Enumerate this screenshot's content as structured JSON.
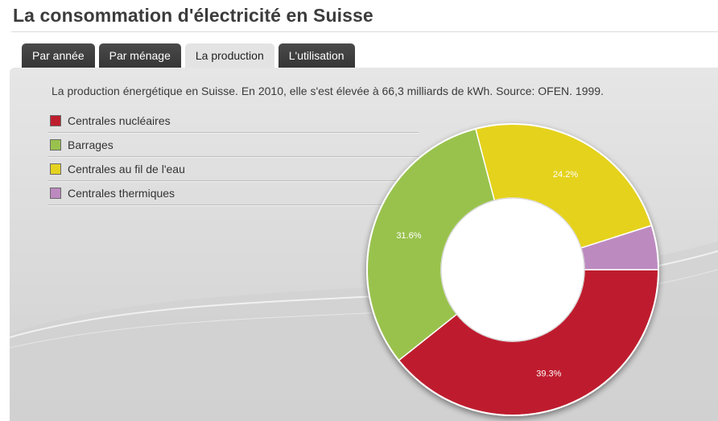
{
  "header": {
    "title": "La consommation d'électricité en Suisse"
  },
  "tabs": [
    {
      "label": "Par année",
      "active": false
    },
    {
      "label": "Par ménage",
      "active": false
    },
    {
      "label": "La production",
      "active": true
    },
    {
      "label": "L'utilisation",
      "active": false
    }
  ],
  "panel": {
    "intro": "La production énergétique en Suisse. En 2010, elle s'est élevée à 66,3 milliards de kWh. Source: OFEN. 1999."
  },
  "chart_data": {
    "type": "pie",
    "variant": "donut",
    "categories": [
      "Centrales nucléaires",
      "Barrages",
      "Centrales au fil de l'eau",
      "Centrales thermiques"
    ],
    "values": [
      39.3,
      31.6,
      24.2,
      4.9
    ],
    "data_labels": [
      "39.3%",
      "31.6%",
      "24.2%",
      ""
    ],
    "colors": [
      "#be1e2d",
      "#99c24d",
      "#e5d21f",
      "#bd8ac0"
    ],
    "legend_position": "left",
    "start_angle_deg": 90
  }
}
